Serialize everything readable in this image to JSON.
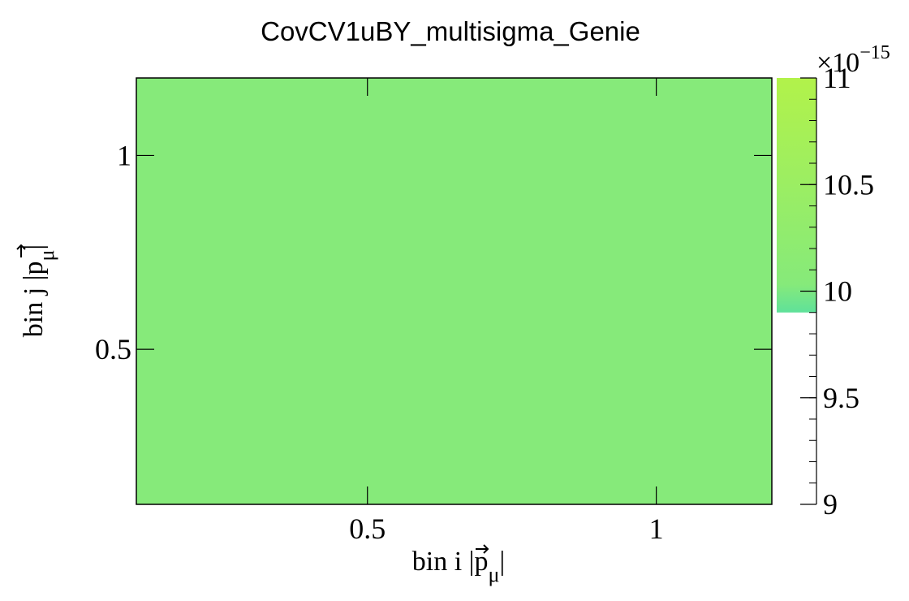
{
  "chart_data": {
    "type": "heatmap",
    "title": "CovCV1uBY_multisigma_Genie",
    "xlabel": "bin i |p⃗_μ|",
    "ylabel": "bin j |p⃗_μ|",
    "xlabel_parts": {
      "prefix": "bin i |",
      "vector": "p",
      "sub": "μ",
      "suffix": "|"
    },
    "ylabel_parts": {
      "prefix": "bin j |",
      "vector": "p",
      "sub": "μ",
      "suffix": "|"
    },
    "xlim": [
      0.1,
      1.2
    ],
    "ylim": [
      0.1,
      1.2
    ],
    "x_ticks": [
      0.5,
      1
    ],
    "x_tick_labels": [
      "0.5",
      "1"
    ],
    "y_ticks": [
      0.5,
      1
    ],
    "y_tick_labels": [
      "0.5",
      "1"
    ],
    "cells": [
      {
        "x": [
          0.1,
          1.2
        ],
        "y": [
          0.1,
          1.2
        ],
        "value": 1e-14
      }
    ],
    "colorbar": {
      "range": [
        9,
        11
      ],
      "multiplier": "×10",
      "exponent": "−15",
      "ticks": [
        9,
        9.5,
        10,
        10.5,
        11
      ],
      "tick_labels": [
        "9",
        "9.5",
        "10",
        "10.5",
        "11"
      ],
      "filled_from": 9.9,
      "colors": {
        "low": "#5fe19a",
        "mid": "#86ea7a",
        "high": "#b2f24a"
      }
    },
    "cell_color": "#86ea7a",
    "grid": false
  }
}
